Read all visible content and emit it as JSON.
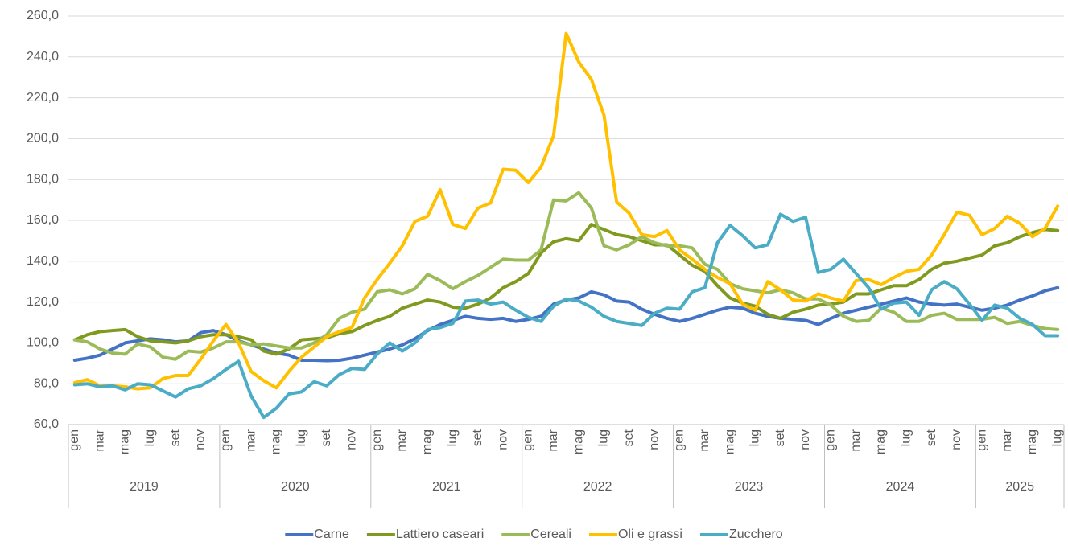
{
  "chart_data": {
    "type": "line",
    "categories": [
      "gen",
      null,
      "mar",
      null,
      "mag",
      null,
      "lug",
      null,
      "set",
      null,
      "nov",
      null,
      "gen",
      null,
      "mar",
      null,
      "mag",
      null,
      "lug",
      null,
      "set",
      null,
      "nov",
      null,
      "gen",
      null,
      "mar",
      null,
      "mag",
      null,
      "lug",
      null,
      "set",
      null,
      "nov",
      null,
      "gen",
      null,
      "mar",
      null,
      "mag",
      null,
      "lug",
      null,
      "set",
      null,
      "nov",
      null,
      "gen",
      null,
      "mar",
      null,
      "mag",
      null,
      "lug",
      null,
      "set",
      null,
      "nov",
      null,
      "gen",
      null,
      "mar",
      null,
      "mag",
      null,
      "lug",
      null,
      "set",
      null,
      "nov",
      null,
      "gen",
      null,
      "mar",
      null,
      "mag",
      null,
      "lug"
    ],
    "years": [
      "2019",
      "2020",
      "2021",
      "2022",
      "2023",
      "2024",
      "2025"
    ],
    "ylim": [
      60,
      260
    ],
    "yticks": [
      {
        "value": 60,
        "label": "60,0"
      },
      {
        "value": 80,
        "label": "80,0"
      },
      {
        "value": 100,
        "label": "100,0"
      },
      {
        "value": 120,
        "label": "120,0"
      },
      {
        "value": 140,
        "label": "140,0"
      },
      {
        "value": 160,
        "label": "160,0"
      },
      {
        "value": 180,
        "label": "180,0"
      },
      {
        "value": 200,
        "label": "200,0"
      },
      {
        "value": 220,
        "label": "220,0"
      },
      {
        "value": 240,
        "label": "240,0"
      },
      {
        "value": 260,
        "label": "260,0"
      }
    ],
    "grid": true,
    "legend": "bottom",
    "series": [
      {
        "name": "Carne",
        "color": "#4472c4",
        "values": [
          91.5,
          92.5,
          94,
          97,
          100,
          101,
          102,
          101.5,
          100.5,
          101,
          105,
          106,
          104,
          101,
          99,
          97,
          95,
          94,
          91.5,
          91.5,
          91.3,
          91.5,
          92.5,
          94,
          95.5,
          97,
          99,
          102,
          106,
          109,
          111,
          113,
          112,
          111.5,
          112,
          110.5,
          111.5,
          113,
          119,
          121,
          122,
          125,
          123.5,
          120.5,
          120,
          116.5,
          114,
          112,
          110.5,
          112,
          114,
          116,
          117.5,
          117,
          114.5,
          113,
          112,
          111.5,
          111,
          109,
          112,
          114.5,
          116,
          117.5,
          119,
          120.5,
          122,
          120,
          119,
          118.5,
          119,
          117.5,
          116,
          117,
          118.5,
          121,
          123,
          125.5,
          127
        ]
      },
      {
        "name": "Lattiero caseari",
        "color": "#7f9a1e",
        "values": [
          101.5,
          104,
          105.5,
          106,
          106.5,
          103,
          101,
          100.5,
          100,
          101,
          103,
          104,
          104,
          103,
          101.5,
          96,
          94.5,
          97,
          101.5,
          102,
          102.5,
          104.5,
          105.5,
          108.5,
          111,
          113,
          117,
          119,
          121,
          120,
          117.5,
          117,
          119,
          122,
          127,
          130,
          134,
          144,
          149.5,
          151,
          150,
          158,
          155.5,
          153,
          152,
          150,
          148,
          148,
          143,
          138,
          135,
          128,
          122,
          119.5,
          118,
          114,
          112,
          115,
          116.5,
          118.5,
          119,
          120,
          124,
          124,
          126,
          128,
          128,
          131,
          136,
          139,
          140,
          141.5,
          143,
          147.5,
          149,
          152,
          154,
          155.5,
          155
        ]
      },
      {
        "name": "Cereali",
        "color": "#9bbb59",
        "values": [
          101.5,
          100.5,
          97,
          95,
          94.5,
          99.5,
          98,
          93,
          92,
          96,
          95.5,
          97.5,
          100.5,
          100.5,
          99,
          99.5,
          98.5,
          97.5,
          97.5,
          100,
          104,
          112,
          115,
          116.5,
          125,
          126,
          124,
          126.5,
          133.5,
          130.5,
          126.5,
          130,
          133,
          137,
          141,
          140.5,
          140.5,
          145.5,
          170,
          169.5,
          173.5,
          166,
          147.5,
          145.5,
          148,
          152,
          149,
          147.5,
          147.5,
          146.5,
          138.5,
          136,
          129,
          126.5,
          125.5,
          124.5,
          126,
          124.5,
          121.5,
          121.5,
          118.5,
          113,
          110.5,
          111,
          117,
          115,
          110.5,
          110.5,
          113.5,
          114.5,
          111.5,
          111.5,
          111.5,
          112.5,
          109.5,
          110.5,
          108.5,
          107,
          106.5
        ]
      },
      {
        "name": "Oli e grassi",
        "color": "#ffc000",
        "values": [
          80.5,
          82,
          79,
          79,
          78.5,
          77.5,
          78,
          82.5,
          84,
          84,
          92,
          101,
          109,
          100,
          86,
          81.5,
          78,
          86,
          93,
          98,
          103,
          105.5,
          107.5,
          122,
          131,
          139,
          147.5,
          159.5,
          162,
          175,
          158,
          156,
          166,
          168.5,
          185,
          184.5,
          178.5,
          186,
          201.5,
          251.5,
          237.5,
          229,
          211.5,
          169,
          163.5,
          153,
          152,
          155,
          145.5,
          141,
          136,
          132,
          129,
          119,
          116,
          130,
          126,
          121,
          120.5,
          124,
          122,
          120.5,
          130.5,
          131,
          128.5,
          132,
          135,
          136,
          143,
          153,
          164,
          162.5,
          153,
          156,
          162,
          158.5,
          152,
          156,
          167
        ]
      },
      {
        "name": "Zucchero",
        "color": "#4bacc6",
        "values": [
          79.5,
          80,
          78.5,
          79,
          77,
          80,
          79.5,
          76.5,
          73.5,
          77.5,
          79,
          82.5,
          87,
          91,
          74,
          63.5,
          68,
          75,
          76,
          81,
          79,
          84.5,
          87.5,
          87,
          94.5,
          100,
          96,
          100,
          106.5,
          107.5,
          109.5,
          120.5,
          121,
          119,
          120,
          116,
          112.5,
          110.5,
          118,
          121.5,
          120.5,
          117.5,
          113,
          110.5,
          109.5,
          108.5,
          114.5,
          117,
          116.5,
          125,
          127,
          149,
          157.5,
          152.5,
          146.5,
          148,
          163,
          159.5,
          161.5,
          134.5,
          136,
          141,
          134,
          127,
          116.5,
          119.5,
          120,
          113.5,
          126,
          130,
          126.5,
          119,
          111,
          118.5,
          117,
          112,
          109,
          103.5,
          103.5
        ]
      }
    ]
  }
}
